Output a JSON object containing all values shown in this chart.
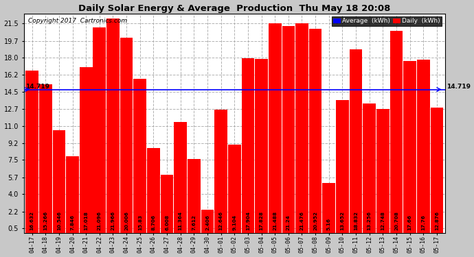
{
  "title": "Daily Solar Energy & Average  Production  Thu May 18 20:08",
  "copyright": "Copyright 2017  Cartronics.com",
  "average_value": 14.719,
  "bar_color": "#FF0000",
  "average_line_color": "#0000FF",
  "fig_bg_color": "#C8C8C8",
  "plot_bg_color": "#FFFFFF",
  "categories": [
    "04-17",
    "04-18",
    "04-19",
    "04-20",
    "04-21",
    "04-22",
    "04-23",
    "04-24",
    "04-25",
    "04-26",
    "04-27",
    "04-28",
    "04-29",
    "04-30",
    "05-01",
    "05-02",
    "05-03",
    "05-04",
    "05-05",
    "05-06",
    "05-07",
    "05-08",
    "05-09",
    "05-10",
    "05-11",
    "05-12",
    "05-13",
    "05-14",
    "05-15",
    "05-16",
    "05-17"
  ],
  "values": [
    16.632,
    15.266,
    10.546,
    7.846,
    17.018,
    21.096,
    21.966,
    20.006,
    15.83,
    8.706,
    6.008,
    11.364,
    7.612,
    2.406,
    12.646,
    9.104,
    17.904,
    17.828,
    21.488,
    21.24,
    21.476,
    20.952,
    5.16,
    13.652,
    18.832,
    13.256,
    12.748,
    20.708,
    17.66,
    17.76,
    12.876
  ],
  "yticks": [
    0.5,
    2.2,
    4.0,
    5.7,
    7.5,
    9.2,
    11.0,
    12.7,
    14.5,
    16.2,
    18.0,
    19.7,
    21.5
  ]
}
